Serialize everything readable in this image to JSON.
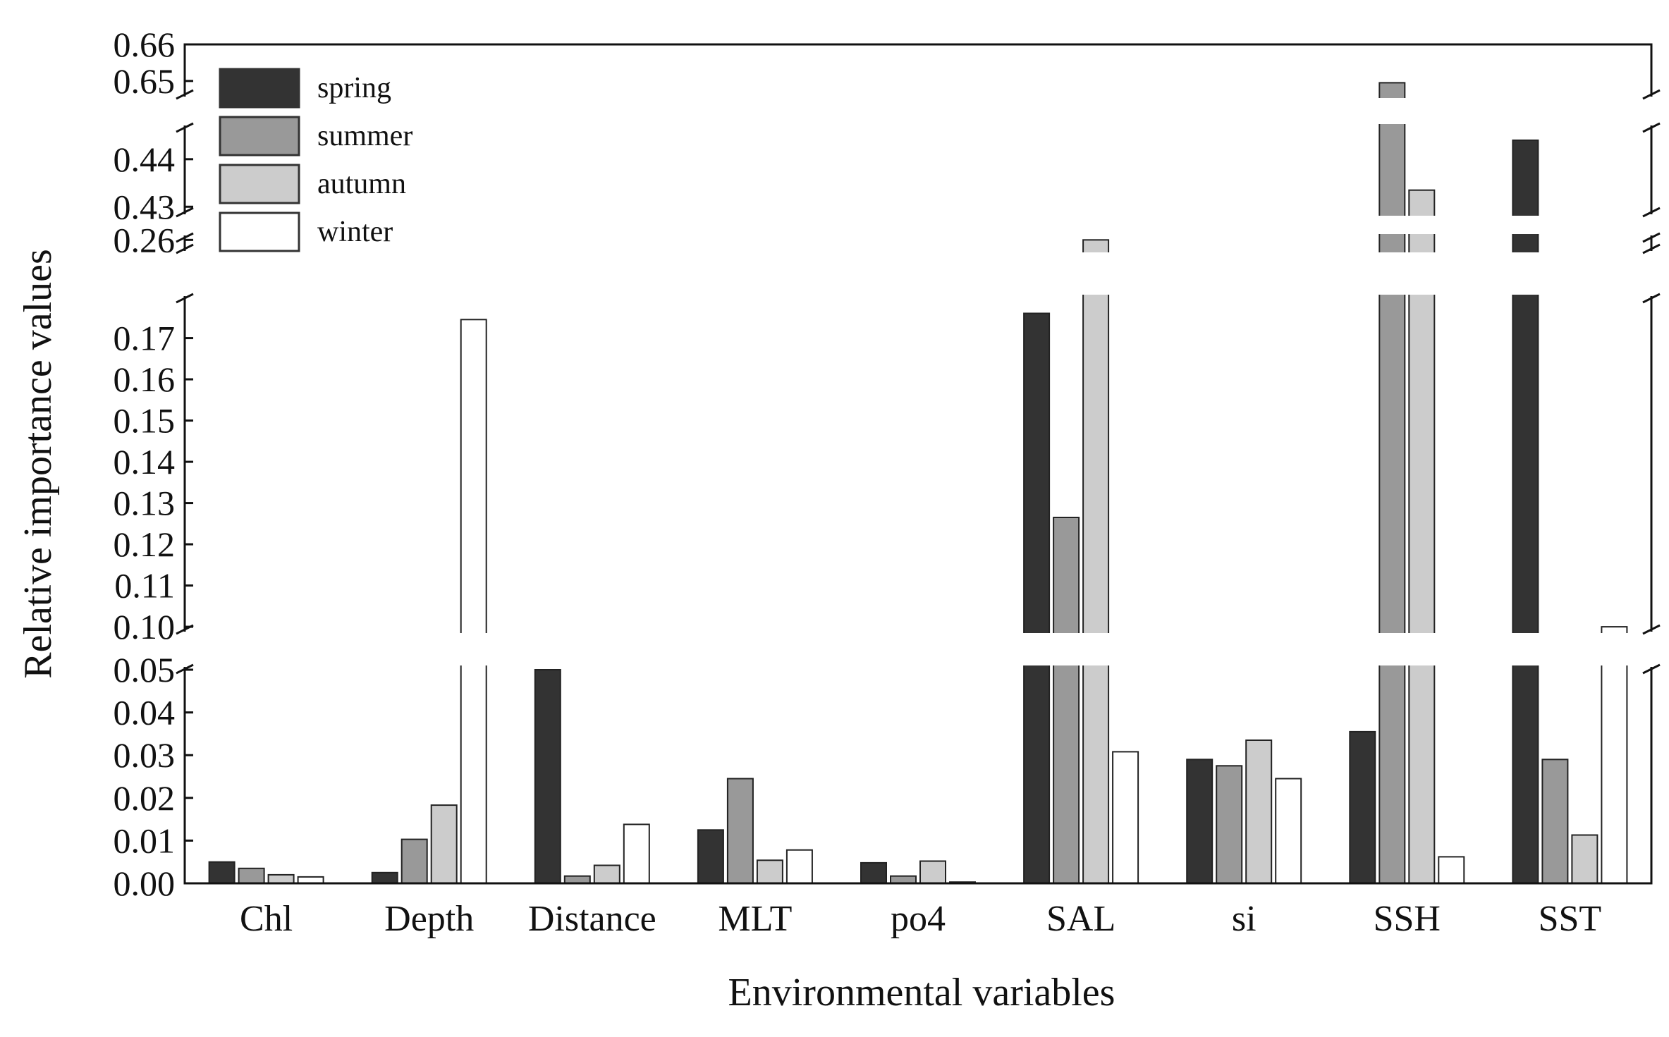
{
  "chart_data": {
    "type": "bar",
    "title": "",
    "xlabel": "Environmental variables",
    "ylabel": "Relative importance values",
    "categories": [
      "Chl",
      "Depth",
      "Distance",
      "MLT",
      "po4",
      "SAL",
      "si",
      "SSH",
      "SST"
    ],
    "series": [
      {
        "name": "spring",
        "color": "#333333",
        "values": [
          0.005,
          0.0025,
          0.05,
          0.0125,
          0.0048,
          0.176,
          0.029,
          0.0355,
          0.444
        ]
      },
      {
        "name": "summer",
        "color": "#999999",
        "values": [
          0.0035,
          0.0103,
          0.0017,
          0.0245,
          0.0017,
          0.1265,
          0.0275,
          0.6495,
          0.029
        ]
      },
      {
        "name": "autumn",
        "color": "#cccccc",
        "values": [
          0.002,
          0.0183,
          0.0042,
          0.0054,
          0.0052,
          0.26,
          0.0335,
          0.4335,
          0.0113
        ]
      },
      {
        "name": "winter",
        "color": "#ffffff",
        "values": [
          0.0015,
          0.1745,
          0.0138,
          0.0078,
          0.0003,
          0.0308,
          0.0245,
          0.0062,
          0.1
        ]
      }
    ],
    "y_axis_segments": [
      {
        "range": [
          0.0,
          0.05
        ],
        "ticks": [
          "0.00",
          "0.01",
          "0.02",
          "0.03",
          "0.04",
          "0.05"
        ]
      },
      {
        "range": [
          0.0995,
          0.1795
        ],
        "ticks": [
          "0.10",
          "0.11",
          "0.12",
          "0.13",
          "0.14",
          "0.15",
          "0.16",
          "0.17"
        ]
      },
      {
        "range": [
          0.2575,
          0.2605
        ],
        "ticks": [
          "0.26"
        ]
      },
      {
        "range": [
          0.429,
          0.4465
        ],
        "ticks": [
          "0.43",
          "0.44"
        ]
      },
      {
        "range": [
          0.6465,
          0.66
        ],
        "ticks": [
          "0.65",
          "0.66"
        ]
      }
    ],
    "legend_position": "top-left",
    "grid": false
  }
}
